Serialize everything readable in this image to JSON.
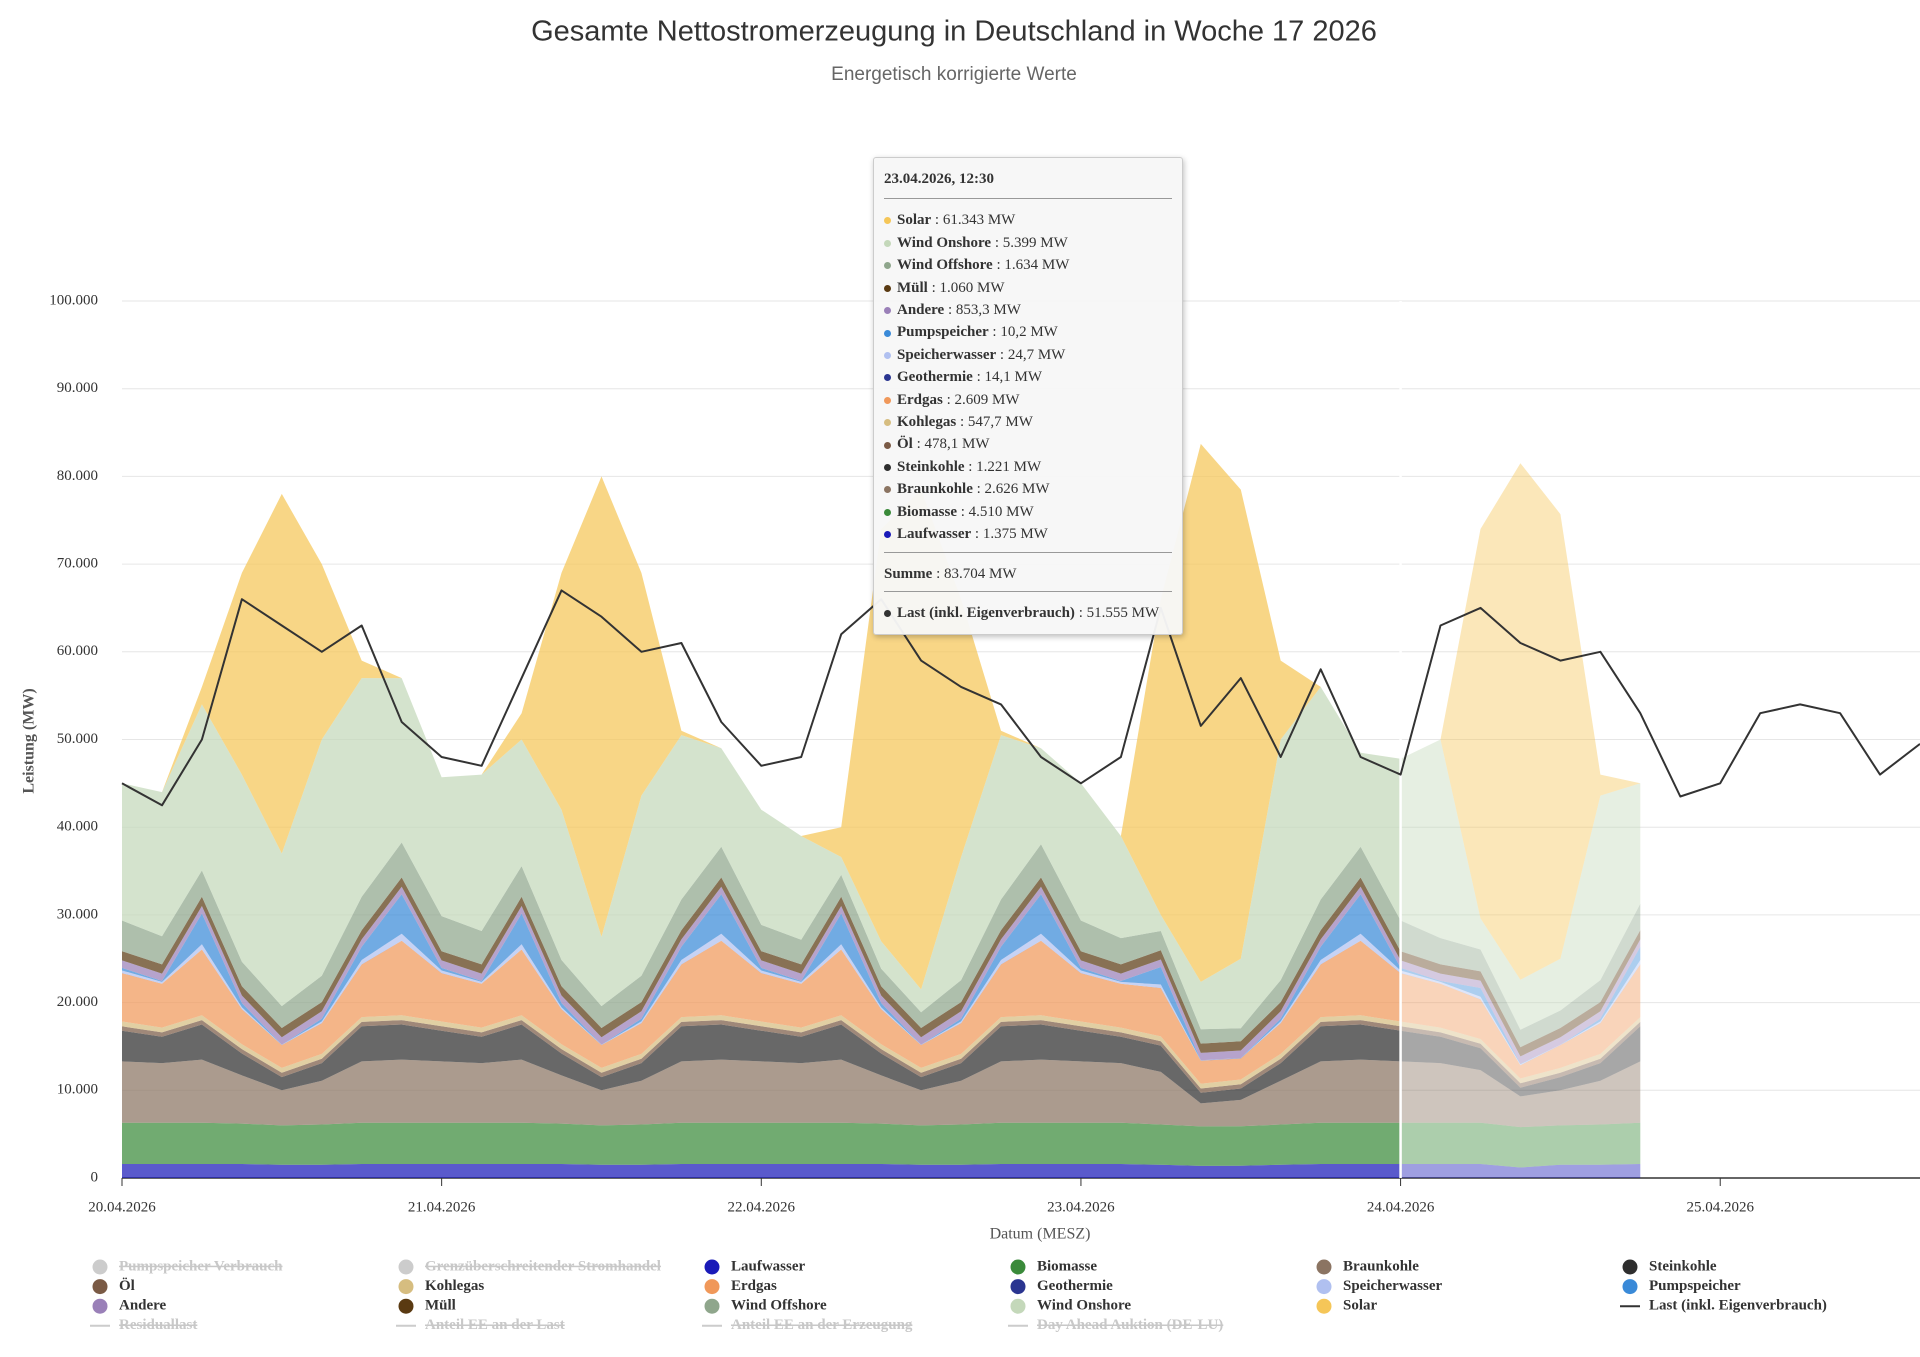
{
  "chart_data": {
    "type": "stacked_area",
    "title": "Gesamte Nettostromerzeugung in Deutschland in Woche 17 2026",
    "subtitle": "Energetisch korrigierte Werte",
    "y_label": "Leistung (MW)",
    "x_label": "Datum (MESZ)",
    "grid": true,
    "forecast_start": "24.04.2026, 00:00",
    "xlim": [
      "20.04.2026, 00:00",
      "25.04.2026, 15:00"
    ],
    "xticks": [
      "20.04.2026",
      "21.04.2026",
      "22.04.2026",
      "23.04.2026",
      "24.04.2026",
      "25.04.2026"
    ],
    "ylim": [
      0,
      100000
    ],
    "yticks": [
      0,
      {
        "value": 10000,
        "label": "10.000"
      },
      {
        "value": 20000,
        "label": "20.000"
      },
      {
        "value": 30000,
        "label": "30.000"
      },
      {
        "value": 40000,
        "label": "40.000"
      },
      {
        "value": 50000,
        "label": "50.000"
      },
      {
        "value": 60000,
        "label": "60.000"
      },
      {
        "value": 70000,
        "label": "70.000"
      },
      {
        "value": 80000,
        "label": "80.000"
      },
      {
        "value": 90000,
        "label": "90.000"
      },
      {
        "value": 100000,
        "label": "100.000"
      }
    ],
    "x": [
      "20.04.2026, 00:00",
      "20.04.2026, 03:00",
      "20.04.2026, 06:00",
      "20.04.2026, 09:00",
      "20.04.2026, 12:00",
      "20.04.2026, 15:00",
      "20.04.2026, 18:00",
      "20.04.2026, 21:00",
      "21.04.2026, 00:00",
      "21.04.2026, 03:00",
      "21.04.2026, 06:00",
      "21.04.2026, 09:00",
      "21.04.2026, 12:00",
      "21.04.2026, 15:00",
      "21.04.2026, 18:00",
      "21.04.2026, 21:00",
      "22.04.2026, 00:00",
      "22.04.2026, 03:00",
      "22.04.2026, 06:00",
      "22.04.2026, 09:00",
      "22.04.2026, 12:00",
      "22.04.2026, 15:00",
      "22.04.2026, 18:00",
      "22.04.2026, 21:00",
      "23.04.2026, 00:00",
      "23.04.2026, 03:00",
      "23.04.2026, 06:00",
      "23.04.2026, 09:00",
      "23.04.2026, 12:00",
      "23.04.2026, 15:00",
      "23.04.2026, 18:00",
      "23.04.2026, 21:00",
      "24.04.2026, 00:00",
      "24.04.2026, 03:00",
      "24.04.2026, 06:00",
      "24.04.2026, 09:00",
      "24.04.2026, 12:00",
      "24.04.2026, 15:00",
      "24.04.2026, 18:00",
      "24.04.2026, 21:00",
      "25.04.2026, 00:00",
      "25.04.2026, 03:00",
      "25.04.2026, 06:00",
      "25.04.2026, 09:00",
      "25.04.2026, 12:00",
      "25.04.2026, 15:00"
    ],
    "series": [
      {
        "name": "Pumpspeicher Verbrauch",
        "type": "area",
        "visible": false
      },
      {
        "name": "Grenzüberschreitender Stromhandel",
        "type": "area",
        "visible": false
      },
      {
        "name": "Laufwasser",
        "type": "area",
        "color": "#1a1ab8",
        "values": [
          1600,
          1600,
          1600,
          1600,
          1500,
          1500,
          1600,
          1600,
          1600,
          1600,
          1600,
          1600,
          1500,
          1500,
          1600,
          1600,
          1600,
          1600,
          1600,
          1600,
          1500,
          1500,
          1600,
          1600,
          1600,
          1600,
          1500,
          1375,
          1400,
          1500,
          1600,
          1600,
          1600,
          1600,
          1600,
          1200,
          1500,
          1500,
          1600,
          null,
          null,
          null,
          null,
          null,
          null,
          null
        ]
      },
      {
        "name": "Biomasse",
        "type": "area",
        "color": "#3a8a3a",
        "values": [
          4700,
          4700,
          4700,
          4600,
          4500,
          4600,
          4700,
          4700,
          4700,
          4700,
          4700,
          4600,
          4500,
          4600,
          4700,
          4700,
          4700,
          4700,
          4700,
          4600,
          4500,
          4600,
          4700,
          4700,
          4700,
          4700,
          4600,
          4510,
          4500,
          4600,
          4700,
          4700,
          4700,
          4700,
          4700,
          4600,
          4500,
          4600,
          4700,
          null,
          null,
          null,
          null,
          null,
          null,
          null
        ]
      },
      {
        "name": "Braunkohle",
        "type": "area",
        "color": "#8b7462",
        "values": [
          7000,
          6800,
          7200,
          5500,
          4000,
          5000,
          7000,
          7200,
          7000,
          6800,
          7200,
          5500,
          4000,
          5000,
          7000,
          7200,
          7000,
          6800,
          7200,
          5500,
          4000,
          5000,
          7000,
          7200,
          7000,
          6800,
          6000,
          2626,
          3000,
          5000,
          7000,
          7200,
          7000,
          6800,
          6000,
          3500,
          4000,
          5000,
          7000,
          null,
          null,
          null,
          null,
          null,
          null,
          null
        ]
      },
      {
        "name": "Steinkohle",
        "type": "area",
        "color": "#2e2e2e",
        "values": [
          3500,
          3000,
          4000,
          2500,
          1500,
          2000,
          4000,
          4000,
          3500,
          3000,
          4000,
          2500,
          1500,
          2000,
          4000,
          4000,
          3500,
          3000,
          4000,
          2500,
          1500,
          2000,
          4000,
          4000,
          3500,
          3000,
          3000,
          1221,
          1300,
          2000,
          4000,
          4000,
          3500,
          3000,
          2500,
          1000,
          1500,
          2000,
          4000,
          null,
          null,
          null,
          null,
          null,
          null,
          null
        ]
      },
      {
        "name": "Öl",
        "type": "area",
        "color": "#7a5a45",
        "values": [
          500,
          500,
          500,
          500,
          500,
          500,
          500,
          500,
          500,
          500,
          500,
          500,
          500,
          500,
          500,
          500,
          500,
          500,
          500,
          500,
          500,
          500,
          500,
          500,
          500,
          500,
          500,
          478.1,
          480,
          500,
          500,
          500,
          500,
          500,
          500,
          500,
          500,
          500,
          500,
          null,
          null,
          null,
          null,
          null,
          null,
          null
        ]
      },
      {
        "name": "Kohlegas",
        "type": "area",
        "color": "#d6bd80",
        "values": [
          550,
          550,
          550,
          550,
          550,
          550,
          550,
          550,
          550,
          550,
          550,
          550,
          550,
          550,
          550,
          550,
          550,
          550,
          550,
          550,
          550,
          550,
          550,
          550,
          550,
          550,
          550,
          547.7,
          550,
          550,
          550,
          550,
          550,
          550,
          550,
          550,
          550,
          550,
          550,
          null,
          null,
          null,
          null,
          null,
          null,
          null
        ]
      },
      {
        "name": "Erdgas",
        "type": "area",
        "color": "#f0985a",
        "values": [
          5500,
          5000,
          7500,
          4000,
          2600,
          3500,
          6000,
          8500,
          5500,
          5000,
          7500,
          4000,
          2600,
          3500,
          6000,
          8500,
          5500,
          5000,
          7500,
          4000,
          2600,
          3500,
          6000,
          8500,
          5500,
          5000,
          5500,
          2609,
          2400,
          3500,
          6000,
          8500,
          5500,
          5000,
          4500,
          1500,
          2600,
          3500,
          6000,
          null,
          null,
          null,
          null,
          null,
          null,
          null
        ]
      },
      {
        "name": "Geothermie",
        "type": "area",
        "color": "#2a3590",
        "values": [
          10,
          10,
          10,
          10,
          10,
          10,
          10,
          10,
          10,
          10,
          10,
          10,
          10,
          10,
          10,
          10,
          10,
          10,
          10,
          10,
          10,
          10,
          10,
          10,
          10,
          10,
          10,
          14.1,
          14,
          10,
          10,
          10,
          10,
          10,
          10,
          10,
          10,
          10,
          10,
          null,
          null,
          null,
          null,
          null,
          null,
          null
        ]
      },
      {
        "name": "Speicherwasser",
        "type": "area",
        "color": "#b0c0f0",
        "values": [
          300,
          200,
          600,
          200,
          30,
          200,
          500,
          800,
          300,
          200,
          600,
          200,
          30,
          200,
          500,
          800,
          300,
          200,
          600,
          200,
          30,
          200,
          500,
          800,
          300,
          200,
          400,
          24.7,
          30,
          200,
          500,
          800,
          300,
          200,
          300,
          100,
          30,
          200,
          500,
          null,
          null,
          null,
          null,
          null,
          null,
          null
        ]
      },
      {
        "name": "Pumpspeicher",
        "type": "area",
        "color": "#3a8ad8",
        "values": [
          300,
          100,
          3500,
          500,
          10,
          300,
          1500,
          4500,
          300,
          100,
          3500,
          500,
          10,
          300,
          1500,
          4500,
          300,
          100,
          3500,
          500,
          10,
          300,
          1500,
          4500,
          300,
          100,
          2000,
          10.2,
          10,
          300,
          1500,
          4500,
          300,
          100,
          1000,
          50,
          10,
          300,
          1500,
          null,
          null,
          null,
          null,
          null,
          null,
          null
        ]
      },
      {
        "name": "Andere",
        "type": "area",
        "color": "#9a80b8",
        "values": [
          850,
          850,
          850,
          850,
          850,
          850,
          850,
          850,
          850,
          850,
          850,
          850,
          850,
          850,
          850,
          850,
          850,
          850,
          850,
          850,
          850,
          850,
          850,
          850,
          850,
          850,
          850,
          853.3,
          850,
          850,
          850,
          850,
          850,
          850,
          850,
          850,
          850,
          850,
          850,
          null,
          null,
          null,
          null,
          null,
          null,
          null
        ]
      },
      {
        "name": "Müll",
        "type": "area",
        "color": "#5a3a12",
        "values": [
          1050,
          1050,
          1050,
          1050,
          1050,
          1050,
          1050,
          1050,
          1050,
          1050,
          1050,
          1050,
          1050,
          1050,
          1050,
          1050,
          1050,
          1050,
          1050,
          1050,
          1050,
          1050,
          1050,
          1050,
          1050,
          1050,
          1050,
          1060,
          1050,
          1050,
          1050,
          1050,
          1050,
          1050,
          1050,
          1050,
          1050,
          1050,
          1050,
          null,
          null,
          null,
          null,
          null,
          null,
          null
        ]
      },
      {
        "name": "Wind Offshore",
        "type": "area",
        "color": "#8fa68c",
        "values": [
          3500,
          3200,
          3000,
          2800,
          2500,
          3000,
          3800,
          4000,
          4000,
          3800,
          3500,
          3000,
          2500,
          3000,
          3500,
          3500,
          3000,
          2800,
          2500,
          2000,
          1800,
          2500,
          3500,
          3800,
          3500,
          3000,
          2200,
          1634,
          1500,
          2500,
          3500,
          3500,
          3500,
          3000,
          2500,
          2000,
          2000,
          2500,
          3000,
          null,
          null,
          null,
          null,
          null,
          null,
          null
        ]
      },
      {
        "name": "Wind Onshore",
        "type": "area",
        "color": "#c4d8ba",
        "values": [
          15640,
          16440,
          18940,
          21340,
          17400,
          26940,
          24940,
          18740,
          15840,
          17840,
          14440,
          17140,
          7900,
          20540,
          18740,
          11240,
          13140,
          11840,
          2040,
          3140,
          2600,
          14040,
          18740,
          10940,
          15640,
          11640,
          1840,
          5399,
          7916,
          27440,
          24240,
          10740,
          18440,
          22640,
          3540,
          5690,
          5900,
          21040,
          13740,
          null,
          null,
          null,
          null,
          null,
          null,
          null
        ]
      },
      {
        "name": "Solar",
        "type": "area",
        "color": "#f5c658",
        "values": [
          0,
          0,
          2000,
          23000,
          41000,
          20000,
          2000,
          0,
          0,
          0,
          3000,
          27000,
          52500,
          25400,
          500,
          0,
          0,
          0,
          3400,
          47000,
          57000,
          29400,
          500,
          0,
          0,
          0,
          36000,
          61343,
          53500,
          9000,
          0,
          0,
          0,
          0,
          44400,
          58900,
          50700,
          2400,
          0,
          null,
          null,
          null,
          null,
          null,
          null,
          null
        ]
      },
      {
        "name": "Last (inkl. Eigenverbrauch)",
        "type": "line",
        "color": "#333333",
        "values": [
          45000,
          42500,
          50000,
          66000,
          63000,
          60000,
          63000,
          52000,
          48000,
          47000,
          57000,
          67000,
          64000,
          60000,
          61000,
          52000,
          47000,
          48000,
          62000,
          66000,
          59000,
          56000,
          54000,
          48000,
          45000,
          48000,
          65000,
          51555,
          57000,
          48000,
          58000,
          48000,
          46000,
          63000,
          65000,
          61000,
          59000,
          60000,
          53000,
          43500,
          45000,
          53000,
          54000,
          53000,
          46000,
          49500
        ]
      },
      {
        "name": "Residuallast",
        "type": "line",
        "visible": false
      },
      {
        "name": "Anteil EE an der Last",
        "type": "line",
        "visible": false
      },
      {
        "name": "Anteil EE an der Erzeugung",
        "type": "line",
        "visible": false
      },
      {
        "name": "Day Ahead Auktion (DE-LU)",
        "type": "line",
        "visible": false
      }
    ]
  },
  "tooltip": {
    "title": "23.04.2026, 12:30",
    "items": [
      {
        "name": "Solar",
        "label": ": 61.343 MW"
      },
      {
        "name": "Wind Onshore",
        "label": ": 5.399 MW"
      },
      {
        "name": "Wind Offshore",
        "label": ": 1.634 MW"
      },
      {
        "name": "Müll",
        "label": ": 1.060 MW"
      },
      {
        "name": "Andere",
        "label": ": 853,3 MW"
      },
      {
        "name": "Pumpspeicher",
        "label": ": 10,2 MW"
      },
      {
        "name": "Speicherwasser",
        "label": ": 24,7 MW"
      },
      {
        "name": "Geothermie",
        "label": ": 14,1 MW"
      },
      {
        "name": "Erdgas",
        "label": ": 2.609 MW"
      },
      {
        "name": "Kohlegas",
        "label": ": 547,7 MW"
      },
      {
        "name": "Öl",
        "label": ": 478,1 MW"
      },
      {
        "name": "Steinkohle",
        "label": ": 1.221 MW"
      },
      {
        "name": "Braunkohle",
        "label": ": 2.626 MW"
      },
      {
        "name": "Biomasse",
        "label": ": 4.510 MW"
      },
      {
        "name": "Laufwasser",
        "label": ": 1.375 MW"
      }
    ],
    "sum": {
      "name": "Summe",
      "label": ": 83.704 MW"
    },
    "load": {
      "name": "Last (inkl. Eigenverbrauch)",
      "label": ": 51.555 MW"
    }
  }
}
